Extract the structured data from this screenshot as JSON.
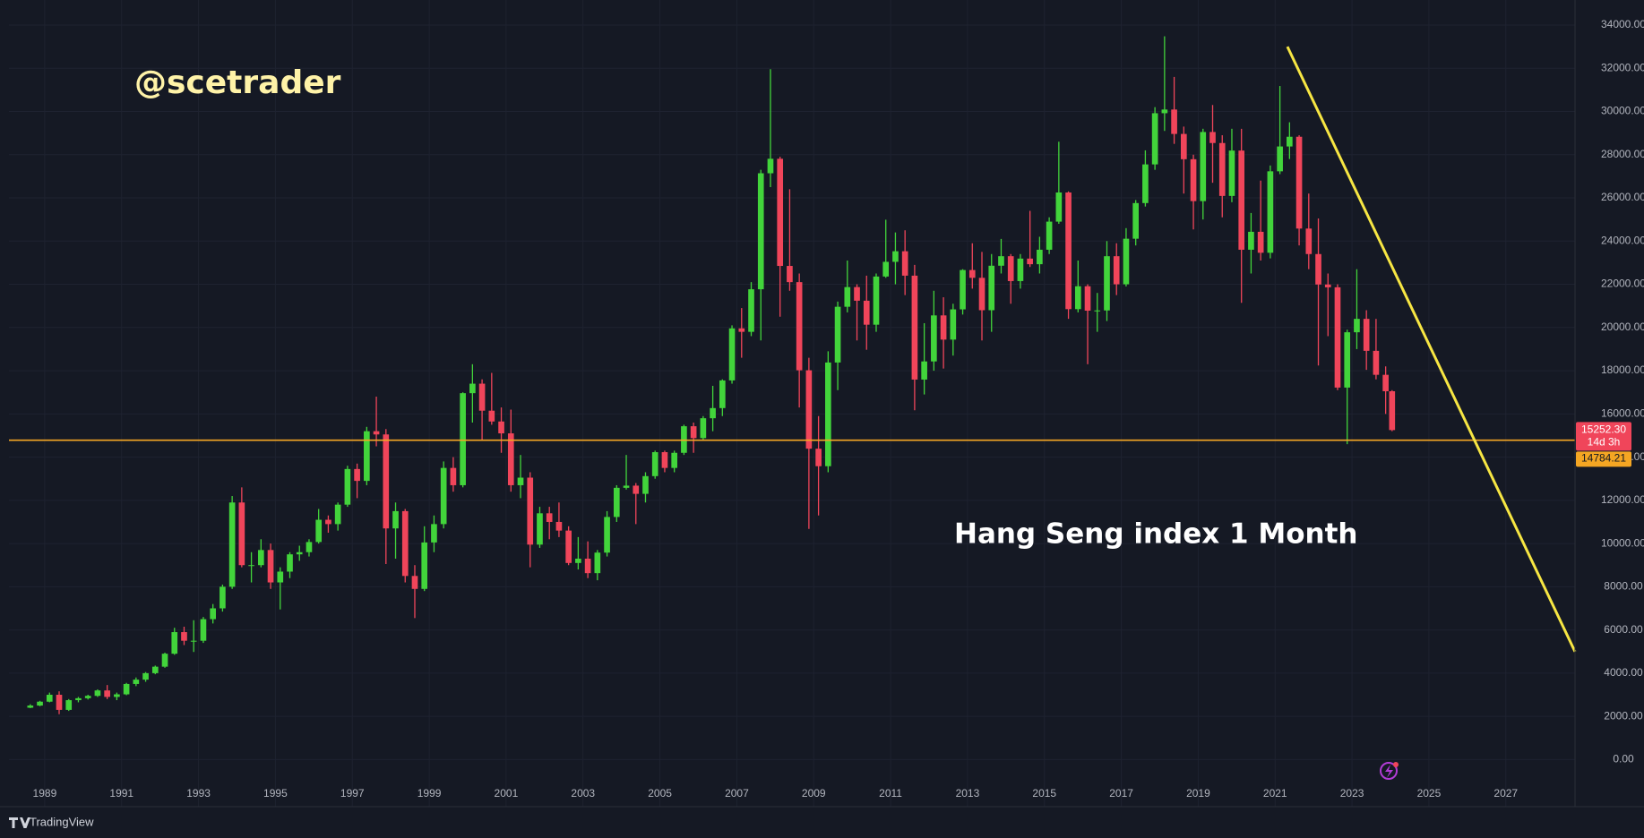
{
  "chart_data": {
    "type": "candlestick",
    "title": "Hang Seng index 1 Month",
    "watermark": "@scetrader",
    "up_color": "#42d43b",
    "down_color": "#f0455a",
    "xlim": [
      1988.07,
      2028.8
    ],
    "xticks": [
      1989,
      1991,
      1993,
      1995,
      1997,
      1999,
      2001,
      2003,
      2005,
      2007,
      2009,
      2011,
      2013,
      2015,
      2017,
      2019,
      2021,
      2023,
      2025,
      2027
    ],
    "ylim": [
      -2180,
      35160
    ],
    "yticks": [
      {
        "value": 0,
        "label": "0.00"
      },
      {
        "value": 2000,
        "label": "2000.00"
      },
      {
        "value": 4000,
        "label": "4000.00"
      },
      {
        "value": 6000,
        "label": "6000.00"
      },
      {
        "value": 8000,
        "label": "8000.00"
      },
      {
        "value": 10000,
        "label": "10000.00"
      },
      {
        "value": 12000,
        "label": "12000.00"
      },
      {
        "value": 14000,
        "label": "14000.00"
      },
      {
        "value": 16000,
        "label": "16000.00"
      },
      {
        "value": 18000,
        "label": "18000.00"
      },
      {
        "value": 20000,
        "label": "20000.00"
      },
      {
        "value": 22000,
        "label": "22000.00"
      },
      {
        "value": 24000,
        "label": "24000.00"
      },
      {
        "value": 26000,
        "label": "26000.00"
      },
      {
        "value": 28000,
        "label": "28000.00"
      },
      {
        "value": 30000,
        "label": "30000.00"
      },
      {
        "value": 32000,
        "label": "32000.00"
      },
      {
        "value": 34000,
        "label": "34000.00"
      }
    ],
    "grid": true,
    "candles": [
      [
        1988.625,
        2400,
        2560,
        2380,
        2500
      ],
      [
        1988.875,
        2500,
        2720,
        2470,
        2680
      ],
      [
        1989.125,
        2680,
        3100,
        2650,
        3000
      ],
      [
        1989.375,
        3000,
        3160,
        2100,
        2300
      ],
      [
        1989.625,
        2300,
        2800,
        2250,
        2750
      ],
      [
        1989.875,
        2750,
        2900,
        2650,
        2840
      ],
      [
        1990.125,
        2840,
        3000,
        2780,
        2950
      ],
      [
        1990.375,
        2950,
        3250,
        2900,
        3200
      ],
      [
        1990.625,
        3200,
        3450,
        2800,
        2900
      ],
      [
        1990.875,
        2900,
        3100,
        2750,
        3020
      ],
      [
        1991.125,
        3020,
        3550,
        2980,
        3500
      ],
      [
        1991.375,
        3500,
        3800,
        3400,
        3700
      ],
      [
        1991.625,
        3700,
        4050,
        3600,
        4000
      ],
      [
        1991.875,
        4000,
        4350,
        3950,
        4300
      ],
      [
        1992.125,
        4300,
        4950,
        4250,
        4900
      ],
      [
        1992.375,
        4900,
        6100,
        4850,
        5900
      ],
      [
        1992.625,
        5900,
        6150,
        5300,
        5500
      ],
      [
        1992.875,
        5500,
        6450,
        4980,
        5500
      ],
      [
        1993.125,
        5500,
        6600,
        5400,
        6500
      ],
      [
        1993.375,
        6500,
        7200,
        6300,
        7000
      ],
      [
        1993.625,
        7000,
        8100,
        6850,
        8000
      ],
      [
        1993.875,
        8000,
        12200,
        7900,
        11900
      ],
      [
        1994.125,
        11900,
        12600,
        8900,
        9000
      ],
      [
        1994.375,
        9000,
        9600,
        8200,
        9000
      ],
      [
        1994.625,
        9000,
        10200,
        8900,
        9700
      ],
      [
        1994.875,
        9700,
        10000,
        7900,
        8200
      ],
      [
        1995.125,
        8200,
        8900,
        6950,
        8700
      ],
      [
        1995.375,
        8700,
        9600,
        8400,
        9500
      ],
      [
        1995.625,
        9500,
        9900,
        9200,
        9600
      ],
      [
        1995.875,
        9600,
        10200,
        9400,
        10070
      ],
      [
        1996.125,
        10070,
        11600,
        10000,
        11100
      ],
      [
        1996.375,
        11100,
        11300,
        10500,
        10900
      ],
      [
        1996.625,
        10900,
        11900,
        10600,
        11800
      ],
      [
        1996.875,
        11800,
        13600,
        11700,
        13450
      ],
      [
        1997.125,
        13450,
        13700,
        12100,
        12900
      ],
      [
        1997.375,
        12900,
        15400,
        12700,
        15200
      ],
      [
        1997.625,
        15200,
        16800,
        14500,
        15050
      ],
      [
        1997.875,
        15050,
        15300,
        9050,
        10700
      ],
      [
        1998.125,
        10700,
        11900,
        9300,
        11500
      ],
      [
        1998.375,
        11500,
        11600,
        8200,
        8500
      ],
      [
        1998.625,
        8500,
        9000,
        6550,
        7900
      ],
      [
        1998.875,
        7900,
        10800,
        7800,
        10050
      ],
      [
        1999.125,
        10050,
        11300,
        9600,
        10900
      ],
      [
        1999.375,
        10900,
        13800,
        10700,
        13500
      ],
      [
        1999.625,
        13500,
        14000,
        12400,
        12700
      ],
      [
        1999.875,
        12700,
        17000,
        12600,
        16960
      ],
      [
        2000.125,
        16960,
        18300,
        15600,
        17400
      ],
      [
        2000.375,
        17400,
        17600,
        14800,
        16150
      ],
      [
        2000.625,
        16150,
        17900,
        15500,
        15650
      ],
      [
        2000.875,
        15650,
        16300,
        14200,
        15100
      ],
      [
        2001.125,
        15100,
        16200,
        12400,
        12700
      ],
      [
        2001.375,
        12700,
        14100,
        12100,
        13050
      ],
      [
        2001.625,
        13050,
        13300,
        8900,
        9950
      ],
      [
        2001.875,
        9950,
        11700,
        9800,
        11400
      ],
      [
        2002.125,
        11400,
        11700,
        10200,
        11000
      ],
      [
        2002.375,
        11000,
        11900,
        10300,
        10600
      ],
      [
        2002.625,
        10600,
        10800,
        9000,
        9100
      ],
      [
        2002.875,
        9100,
        10300,
        8800,
        9300
      ],
      [
        2003.125,
        9300,
        10100,
        8400,
        8630
      ],
      [
        2003.375,
        8630,
        9700,
        8300,
        9580
      ],
      [
        2003.625,
        9580,
        11500,
        9400,
        11230
      ],
      [
        2003.875,
        11230,
        12700,
        11000,
        12580
      ],
      [
        2004.125,
        12580,
        14100,
        12500,
        12680
      ],
      [
        2004.375,
        12680,
        12800,
        10900,
        12300
      ],
      [
        2004.625,
        12300,
        13300,
        11900,
        13120
      ],
      [
        2004.875,
        13120,
        14300,
        13000,
        14230
      ],
      [
        2005.125,
        14230,
        14300,
        13300,
        13500
      ],
      [
        2005.375,
        13500,
        14300,
        13300,
        14200
      ],
      [
        2005.625,
        14200,
        15500,
        14100,
        15430
      ],
      [
        2005.875,
        15430,
        15600,
        14200,
        14880
      ],
      [
        2006.125,
        14880,
        15900,
        14800,
        15800
      ],
      [
        2006.375,
        15800,
        17300,
        15200,
        16270
      ],
      [
        2006.625,
        16270,
        17600,
        15900,
        17550
      ],
      [
        2006.875,
        17550,
        20100,
        17400,
        19960
      ],
      [
        2007.125,
        19960,
        20900,
        18600,
        19800
      ],
      [
        2007.375,
        19800,
        22100,
        19600,
        21770
      ],
      [
        2007.625,
        21770,
        27300,
        19400,
        27140
      ],
      [
        2007.875,
        27140,
        31960,
        26500,
        27810
      ],
      [
        2008.125,
        27810,
        27900,
        20500,
        22850
      ],
      [
        2008.375,
        22850,
        26400,
        21700,
        22100
      ],
      [
        2008.625,
        22100,
        22500,
        16300,
        18020
      ],
      [
        2008.875,
        18020,
        18600,
        10680,
        14390
      ],
      [
        2009.125,
        14390,
        15900,
        11300,
        13580
      ],
      [
        2009.375,
        13580,
        18900,
        13300,
        18380
      ],
      [
        2009.625,
        18380,
        21200,
        17100,
        20960
      ],
      [
        2009.875,
        20960,
        23100,
        20700,
        21870
      ],
      [
        2010.125,
        21870,
        22000,
        19400,
        21240
      ],
      [
        2010.375,
        21240,
        22400,
        18970,
        20130
      ],
      [
        2010.625,
        20130,
        22500,
        19800,
        22360
      ],
      [
        2010.875,
        22360,
        24990,
        22300,
        23040
      ],
      [
        2011.125,
        23040,
        24400,
        22000,
        23530
      ],
      [
        2011.375,
        23530,
        24500,
        21500,
        22400
      ],
      [
        2011.625,
        22400,
        22900,
        16170,
        17590
      ],
      [
        2011.875,
        17590,
        20200,
        16900,
        18430
      ],
      [
        2012.125,
        18430,
        21700,
        18000,
        20560
      ],
      [
        2012.375,
        20560,
        21400,
        18100,
        19440
      ],
      [
        2012.625,
        19440,
        21100,
        18700,
        20840
      ],
      [
        2012.875,
        20840,
        22700,
        20600,
        22660
      ],
      [
        2013.125,
        22660,
        23900,
        21800,
        22300
      ],
      [
        2013.375,
        22300,
        23500,
        19400,
        20800
      ],
      [
        2013.625,
        20800,
        23400,
        19800,
        22860
      ],
      [
        2013.875,
        22860,
        24100,
        22500,
        23300
      ],
      [
        2014.125,
        23300,
        23400,
        21100,
        22150
      ],
      [
        2014.375,
        22150,
        23400,
        21800,
        23190
      ],
      [
        2014.625,
        23190,
        25400,
        22800,
        22930
      ],
      [
        2014.875,
        22930,
        24200,
        22500,
        23600
      ],
      [
        2015.125,
        23600,
        25100,
        23400,
        24900
      ],
      [
        2015.375,
        24900,
        28600,
        24800,
        26250
      ],
      [
        2015.625,
        26250,
        26300,
        20400,
        20850
      ],
      [
        2015.875,
        20850,
        23100,
        20700,
        21910
      ],
      [
        2016.125,
        21910,
        22000,
        18300,
        20780
      ],
      [
        2016.375,
        20780,
        21600,
        19800,
        20790
      ],
      [
        2016.625,
        20790,
        24000,
        20300,
        23300
      ],
      [
        2016.875,
        23300,
        23900,
        21500,
        22000
      ],
      [
        2017.125,
        22000,
        24600,
        21900,
        24110
      ],
      [
        2017.375,
        24110,
        25900,
        23800,
        25760
      ],
      [
        2017.625,
        25760,
        28200,
        25600,
        27550
      ],
      [
        2017.875,
        27550,
        30200,
        27300,
        29920
      ],
      [
        2018.125,
        29920,
        33480,
        29100,
        30090
      ],
      [
        2018.375,
        30090,
        31600,
        28500,
        28960
      ],
      [
        2018.625,
        28960,
        29300,
        26200,
        27790
      ],
      [
        2018.875,
        27790,
        28000,
        24540,
        25850
      ],
      [
        2019.125,
        25850,
        29200,
        25000,
        29050
      ],
      [
        2019.375,
        29050,
        30300,
        26700,
        28540
      ],
      [
        2019.625,
        28540,
        28900,
        25100,
        26090
      ],
      [
        2019.875,
        26090,
        29200,
        25800,
        28190
      ],
      [
        2020.125,
        28190,
        29200,
        21140,
        23600
      ],
      [
        2020.375,
        23600,
        25300,
        22500,
        24430
      ],
      [
        2020.625,
        24430,
        26800,
        23100,
        23460
      ],
      [
        2020.875,
        23460,
        27500,
        23200,
        27230
      ],
      [
        2021.125,
        27230,
        31180,
        27100,
        28380
      ],
      [
        2021.375,
        28380,
        29500,
        27800,
        28830
      ],
      [
        2021.625,
        28830,
        28900,
        23800,
        24580
      ],
      [
        2021.875,
        24580,
        26200,
        22700,
        23400
      ],
      [
        2022.125,
        23400,
        25050,
        18240,
        21990
      ],
      [
        2022.375,
        21990,
        22500,
        19600,
        21860
      ],
      [
        2022.625,
        21860,
        22000,
        17100,
        17220
      ],
      [
        2022.875,
        17220,
        19900,
        14600,
        19780
      ],
      [
        2023.125,
        19780,
        22700,
        19000,
        20400
      ],
      [
        2023.375,
        20400,
        20800,
        18040,
        18920
      ],
      [
        2023.625,
        18920,
        20400,
        17600,
        17810
      ],
      [
        2023.875,
        17810,
        18200,
        16000,
        17050
      ],
      [
        2024.042,
        17050,
        17100,
        15200,
        15252.3
      ]
    ],
    "level": {
      "value": 14784.21,
      "label": "14784.21",
      "color": "#f5a623"
    },
    "last_price": {
      "value": 15252.3,
      "label": "15252.30",
      "countdown": "14d 3h",
      "color": "#f0455a"
    },
    "trendline": {
      "x": [
        2021.32,
        2028.8
      ],
      "y": [
        33000,
        4995
      ],
      "color": "#f7e643"
    }
  },
  "footer": {
    "brand": "TradingView"
  }
}
